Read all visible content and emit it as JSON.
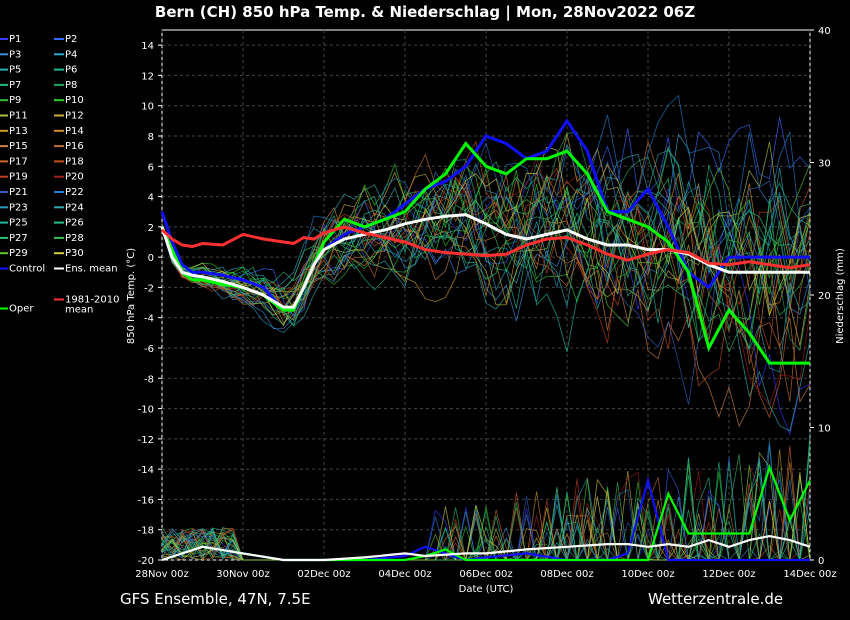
{
  "page": {
    "footer_left": "GFS Ensemble, 47N, 7.5E",
    "footer_right": "Wetterzentrale.de"
  },
  "chart_data": {
    "type": "line",
    "title": "Bern  (CH)  850 hPa Temp. & Niederschlag | Mon, 28Nov2022 06Z",
    "xlabel": "Date (UTC)",
    "ylabel": "850 hPa Temp. (°C)",
    "y2label": "Niederschlag (mm)",
    "x_ticks": [
      "28Nov 00z",
      "30Nov 00z",
      "02Dec 00z",
      "04Dec 00z",
      "06Dec 00z",
      "08Dec 00z",
      "10Dec 00z",
      "12Dec 00z",
      "14Dec 00z"
    ],
    "xlim_hours": [
      0,
      384
    ],
    "ylim": [
      -20,
      15
    ],
    "y_ticks": [
      14,
      12,
      10,
      8,
      6,
      4,
      2,
      0,
      -2,
      -4,
      -6,
      -8,
      -10,
      -12,
      -14,
      -16,
      -18,
      -20
    ],
    "y2lim": [
      0,
      40
    ],
    "y2_ticks": [
      0,
      10,
      20,
      30,
      40
    ],
    "grid": true,
    "legend_position": "left",
    "legend": [
      {
        "label": "P1",
        "color": "#3a3aff"
      },
      {
        "label": "P2",
        "color": "#3a6bff"
      },
      {
        "label": "P3",
        "color": "#3d8fe0"
      },
      {
        "label": "P4",
        "color": "#2fa8c8"
      },
      {
        "label": "P5",
        "color": "#2ab0b0"
      },
      {
        "label": "P6",
        "color": "#20b890"
      },
      {
        "label": "P7",
        "color": "#24b878"
      },
      {
        "label": "P8",
        "color": "#20a860"
      },
      {
        "label": "P9",
        "color": "#30c030"
      },
      {
        "label": "P10",
        "color": "#28d028"
      },
      {
        "label": "P11",
        "color": "#b0c040"
      },
      {
        "label": "P12",
        "color": "#d0b040"
      },
      {
        "label": "P13",
        "color": "#c8a020"
      },
      {
        "label": "P14",
        "color": "#d09030"
      },
      {
        "label": "P15",
        "color": "#d08040"
      },
      {
        "label": "P16",
        "color": "#c07030"
      },
      {
        "label": "P17",
        "color": "#d06830"
      },
      {
        "label": "P18",
        "color": "#c05020"
      },
      {
        "label": "P19",
        "color": "#c04020"
      },
      {
        "label": "P20",
        "color": "#a02020"
      },
      {
        "label": "P21",
        "color": "#3060c0"
      },
      {
        "label": "P22",
        "color": "#2080d0"
      },
      {
        "label": "P23",
        "color": "#2a98c0"
      },
      {
        "label": "P24",
        "color": "#30a8b0"
      },
      {
        "label": "P25",
        "color": "#20b8a0"
      },
      {
        "label": "P26",
        "color": "#28c088"
      },
      {
        "label": "P27",
        "color": "#30c070"
      },
      {
        "label": "P28",
        "color": "#38c058"
      },
      {
        "label": "P29",
        "color": "#60c830"
      },
      {
        "label": "P30",
        "color": "#d0d040"
      },
      {
        "label": "Control",
        "color": "#1010ff"
      },
      {
        "label": "Ens. mean",
        "color": "#ffffff"
      },
      {
        "label": "1981-2010\nmean",
        "color": "#ff3030"
      },
      {
        "label": "Oper",
        "color": "#00ff00"
      }
    ],
    "series": [
      {
        "name": "Control",
        "color": "#1010ff",
        "x": [
          0,
          6,
          12,
          18,
          24,
          36,
          48,
          60,
          72,
          78,
          84,
          90,
          96,
          108,
          120,
          132,
          144,
          156,
          168,
          180,
          192,
          204,
          216,
          228,
          240,
          252,
          264,
          276,
          288,
          300,
          312,
          324,
          336,
          348,
          360,
          372,
          378,
          384
        ],
        "y": [
          3,
          1,
          -0.5,
          -1,
          -1,
          -1.2,
          -1.5,
          -2,
          -3.5,
          -3.5,
          -2,
          -0.5,
          0.5,
          1.5,
          2,
          2.5,
          3.5,
          4.5,
          5,
          6,
          8,
          7.5,
          6.5,
          7,
          9,
          7,
          3,
          3,
          4.5,
          2,
          -1,
          -2,
          0,
          0,
          0,
          0,
          0,
          0
        ]
      },
      {
        "name": "Oper",
        "color": "#00ff00",
        "x": [
          0,
          6,
          12,
          18,
          24,
          36,
          48,
          60,
          72,
          78,
          84,
          90,
          96,
          108,
          120,
          132,
          144,
          156,
          168,
          180,
          192,
          204,
          216,
          228,
          240,
          252,
          264,
          276,
          288,
          300,
          312,
          324,
          336,
          348,
          360,
          372,
          378,
          384
        ],
        "y": [
          2,
          0.5,
          -1,
          -1.5,
          -1.5,
          -1.8,
          -2,
          -2.5,
          -3.5,
          -3.5,
          -2,
          -0.5,
          1,
          2.5,
          2,
          2.5,
          3,
          4.5,
          5.5,
          7.5,
          6,
          5.5,
          6.5,
          6.5,
          7,
          5.5,
          3,
          2.5,
          2,
          1,
          -1,
          -6,
          -3.5,
          -5,
          -7,
          -7,
          -7,
          -7
        ]
      },
      {
        "name": "Ens. mean",
        "color": "#ffffff",
        "x": [
          0,
          6,
          12,
          18,
          24,
          36,
          48,
          60,
          72,
          78,
          84,
          90,
          96,
          108,
          120,
          132,
          144,
          156,
          168,
          180,
          192,
          204,
          216,
          228,
          240,
          252,
          264,
          276,
          288,
          300,
          312,
          324,
          336,
          348,
          360,
          372,
          378,
          384
        ],
        "y": [
          2,
          0,
          -1,
          -1.2,
          -1.3,
          -1.6,
          -2,
          -2.5,
          -3.3,
          -3.3,
          -2,
          -0.5,
          0.5,
          1.2,
          1.5,
          1.8,
          2.2,
          2.5,
          2.7,
          2.8,
          2.2,
          1.5,
          1.2,
          1.5,
          1.8,
          1.2,
          0.8,
          0.8,
          0.5,
          0.5,
          0.2,
          -0.5,
          -1,
          -1,
          -1,
          -1,
          -1,
          -1
        ]
      },
      {
        "name": "1981-2010 mean",
        "color": "#ff3030",
        "x": [
          0,
          6,
          12,
          18,
          24,
          36,
          48,
          60,
          72,
          78,
          84,
          90,
          96,
          108,
          120,
          132,
          144,
          156,
          168,
          180,
          192,
          204,
          216,
          228,
          240,
          252,
          264,
          276,
          288,
          300,
          312,
          324,
          336,
          348,
          360,
          372,
          378,
          384
        ],
        "y": [
          1.8,
          1.2,
          0.8,
          0.7,
          0.9,
          0.8,
          1.5,
          1.2,
          1.0,
          0.9,
          1.3,
          1.2,
          1.6,
          2.0,
          1.6,
          1.3,
          1.0,
          0.5,
          0.3,
          0.2,
          0.1,
          0.2,
          0.8,
          1.2,
          1.3,
          0.8,
          0.2,
          -0.2,
          0.2,
          0.5,
          0.3,
          -0.4,
          -0.5,
          -0.3,
          -0.5,
          -0.7,
          -0.6,
          -0.5
        ]
      }
    ],
    "precip_series": [
      {
        "name": "Control",
        "color": "#1010ff",
        "x": [
          0,
          24,
          48,
          72,
          96,
          120,
          144,
          156,
          168,
          180,
          192,
          216,
          240,
          264,
          276,
          288,
          300,
          312,
          324,
          336,
          348,
          360,
          372,
          384
        ],
        "y": [
          0,
          1,
          0.5,
          0,
          0,
          0,
          0.3,
          1,
          0.5,
          0,
          0.2,
          0.5,
          0,
          0,
          0.5,
          6,
          0,
          0,
          0,
          0,
          0,
          0,
          0,
          0
        ]
      },
      {
        "name": "Oper",
        "color": "#00ff00",
        "x": [
          0,
          24,
          48,
          72,
          96,
          120,
          144,
          156,
          168,
          180,
          192,
          216,
          240,
          264,
          276,
          288,
          300,
          312,
          324,
          336,
          348,
          360,
          372,
          384
        ],
        "y": [
          0,
          1,
          0.5,
          0,
          0,
          0,
          0,
          0.3,
          0.8,
          0,
          0,
          0,
          0,
          0,
          0,
          0,
          5,
          2,
          2,
          2,
          2,
          7,
          3,
          6
        ]
      },
      {
        "name": "Ens. mean",
        "color": "#ffffff",
        "x": [
          0,
          24,
          48,
          72,
          96,
          120,
          144,
          156,
          168,
          180,
          192,
          216,
          240,
          264,
          276,
          288,
          300,
          312,
          324,
          336,
          348,
          360,
          372,
          384
        ],
        "y": [
          0,
          1,
          0.5,
          0,
          0,
          0.2,
          0.5,
          0.3,
          0.4,
          0.5,
          0.5,
          0.8,
          1,
          1.2,
          1.2,
          1,
          1.2,
          1,
          1.5,
          1,
          1.5,
          1.8,
          1.5,
          1
        ]
      }
    ]
  }
}
